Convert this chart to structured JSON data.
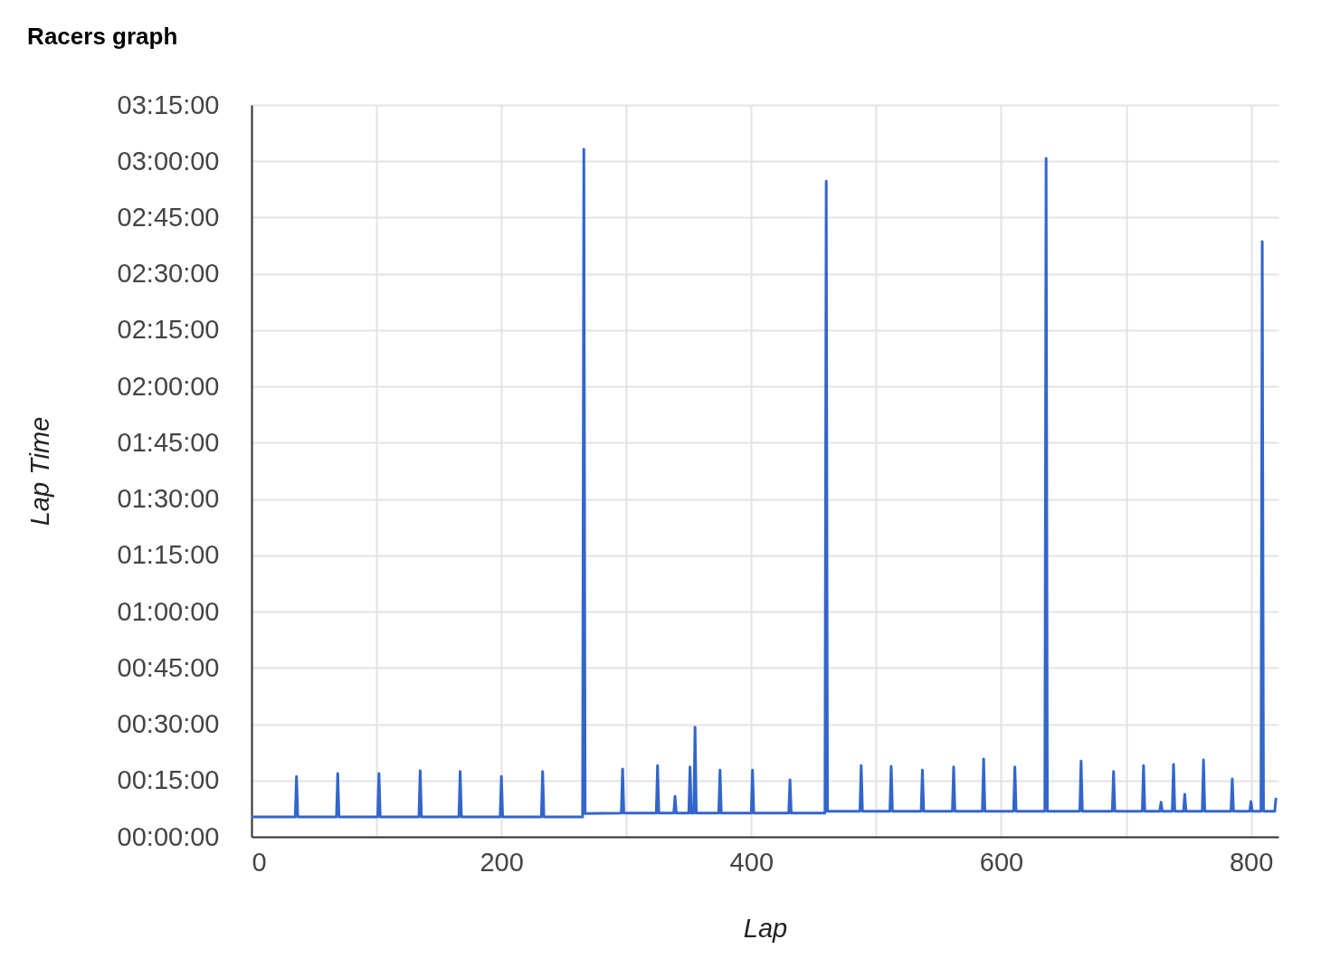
{
  "chart_data": {
    "type": "line",
    "title": "Racers graph",
    "xlabel": "Lap",
    "ylabel": "Lap Time",
    "grid": true,
    "xlim": [
      0,
      822
    ],
    "xticks": [
      0,
      {
        "value": 100,
        "label": null
      },
      200,
      {
        "value": 300,
        "label": null
      },
      400,
      {
        "value": 500,
        "label": null
      },
      600,
      {
        "value": 700,
        "label": null
      },
      800
    ],
    "ylim": [
      0,
      195
    ],
    "yticks": [
      {
        "value": 0,
        "label": "00:00:00"
      },
      {
        "value": 15,
        "label": "00:15:00"
      },
      {
        "value": 30,
        "label": "00:30:00"
      },
      {
        "value": 45,
        "label": "00:45:00"
      },
      {
        "value": 60,
        "label": "01:00:00"
      },
      {
        "value": 75,
        "label": "01:15:00"
      },
      {
        "value": 90,
        "label": "01:30:00"
      },
      {
        "value": 105,
        "label": "01:45:00"
      },
      {
        "value": 120,
        "label": "02:00:00"
      },
      {
        "value": 135,
        "label": "02:15:00"
      },
      {
        "value": 150,
        "label": "02:30:00"
      },
      {
        "value": 165,
        "label": "02:45:00"
      },
      {
        "value": 180,
        "label": "03:00:00"
      },
      {
        "value": 195,
        "label": "03:15:00"
      }
    ],
    "x": [
      0,
      35,
      36,
      37,
      68,
      69,
      70,
      101,
      102,
      103,
      134,
      135,
      136,
      166,
      167,
      168,
      199,
      200,
      201,
      232,
      233,
      234,
      265,
      266,
      267,
      296,
      297,
      298,
      324,
      325,
      326,
      338,
      339,
      340,
      350,
      351,
      352,
      354,
      355,
      356,
      374,
      375,
      376,
      400,
      401,
      402,
      430,
      431,
      432,
      459,
      460,
      461,
      487,
      488,
      489,
      511,
      512,
      513,
      536,
      537,
      538,
      561,
      562,
      563,
      585,
      586,
      587,
      610,
      611,
      612,
      635,
      636,
      637,
      663,
      664,
      665,
      689,
      690,
      691,
      713,
      714,
      715,
      727,
      728,
      729,
      737,
      738,
      739,
      746,
      747,
      748,
      761,
      762,
      763,
      784,
      785,
      786,
      799,
      800,
      801,
      808,
      809,
      810,
      819,
      820
    ],
    "series": [
      {
        "color": "#3366cc",
        "values": [
          5.3,
          5.3,
          16.1,
          5.3,
          5.3,
          16.9,
          5.3,
          5.3,
          16.9,
          5.3,
          5.3,
          17.6,
          5.3,
          5.3,
          17.4,
          5.3,
          5.3,
          16.1,
          5.3,
          5.3,
          17.4,
          5.3,
          5.3,
          183.2,
          6.2,
          6.3,
          18.1,
          6.3,
          6.3,
          19.0,
          6.3,
          6.3,
          10.8,
          6.3,
          6.3,
          18.6,
          6.3,
          6.3,
          29.2,
          6.3,
          6.3,
          17.8,
          6.3,
          6.3,
          17.8,
          6.3,
          6.3,
          15.2,
          6.3,
          6.3,
          174.7,
          6.8,
          6.8,
          19.0,
          6.8,
          6.8,
          18.8,
          6.8,
          6.8,
          17.8,
          6.8,
          6.8,
          18.6,
          6.8,
          6.8,
          20.7,
          6.8,
          6.8,
          18.6,
          6.8,
          6.8,
          180.8,
          6.8,
          6.8,
          20.2,
          6.8,
          6.8,
          17.4,
          6.8,
          6.8,
          19.0,
          6.8,
          6.8,
          9.2,
          6.8,
          6.8,
          19.3,
          6.8,
          6.8,
          11.3,
          6.8,
          6.8,
          20.5,
          6.8,
          6.8,
          15.4,
          6.8,
          6.8,
          9.4,
          6.8,
          6.8,
          158.6,
          6.8,
          6.8,
          10.4
        ]
      }
    ]
  }
}
